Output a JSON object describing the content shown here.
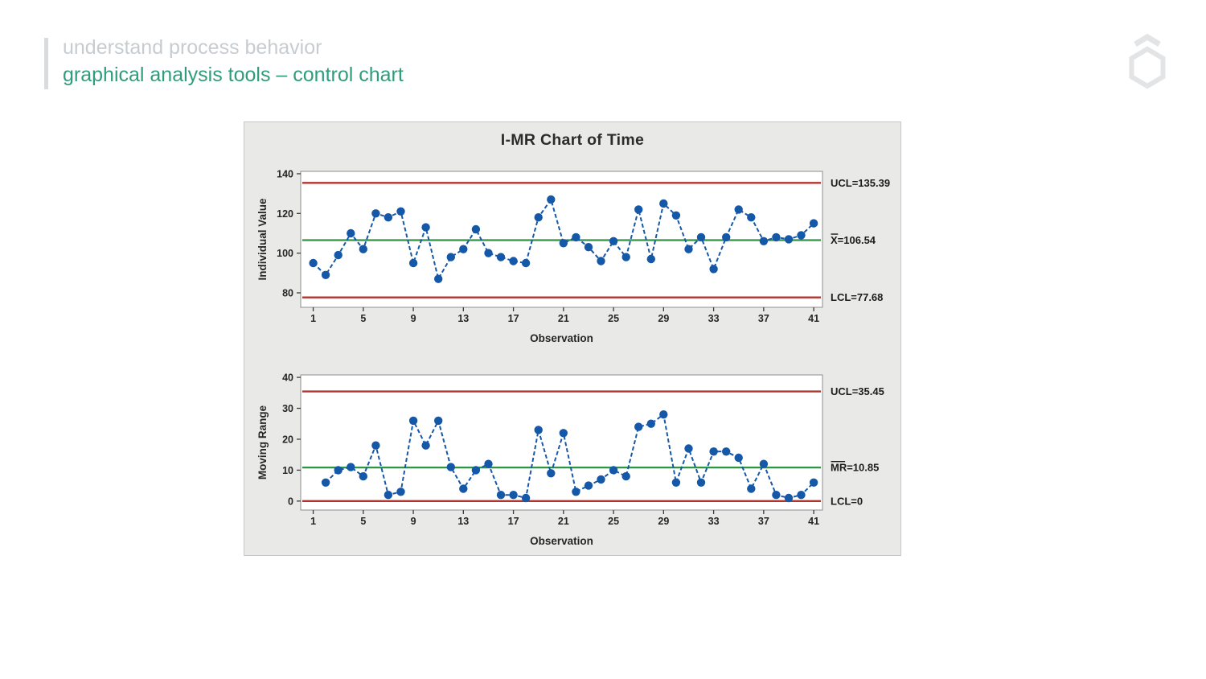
{
  "header": {
    "kicker": "understand process behavior",
    "title": "graphical analysis tools – control chart",
    "kicker_color": "#c7ccd1",
    "title_color": "#2f9d7c"
  },
  "logo": {
    "icon": "hexagon-with-chevron",
    "color": "#e3e4e6"
  },
  "panel": {
    "title": "I-MR Chart of Time",
    "background": "#e9e9e8"
  },
  "colors": {
    "series": "#1558a8",
    "limit": "#b5332d",
    "center": "#2f9444",
    "label": "#262626"
  },
  "chart_data": [
    {
      "type": "line",
      "name": "individuals",
      "title": "I-MR Chart of Time",
      "ylabel": "Individual Value",
      "xlabel": "Observation",
      "x": [
        1,
        2,
        3,
        4,
        5,
        6,
        7,
        8,
        9,
        10,
        11,
        12,
        13,
        14,
        15,
        16,
        17,
        18,
        19,
        20,
        21,
        22,
        23,
        24,
        25,
        26,
        27,
        28,
        29,
        30,
        31,
        32,
        33,
        34,
        35,
        36,
        37,
        38,
        39,
        40,
        41
      ],
      "values": [
        95,
        89,
        99,
        110,
        102,
        120,
        118,
        121,
        95,
        113,
        87,
        98,
        102,
        112,
        100,
        98,
        96,
        95,
        118,
        127,
        105,
        108,
        103,
        96,
        106,
        98,
        122,
        97,
        125,
        119,
        102,
        108,
        92,
        108,
        122,
        118,
        106,
        108,
        107,
        109,
        115
      ],
      "ucl": 135.39,
      "center": 106.54,
      "lcl": 77.68,
      "labels": {
        "ucl": "UCL=135.39",
        "center_prefix": "X",
        "center_rest": "=106.54",
        "lcl": "LCL=77.68"
      },
      "yticks": [
        80,
        100,
        120,
        140
      ],
      "xticks": [
        1,
        5,
        9,
        13,
        17,
        21,
        25,
        29,
        33,
        37,
        41
      ],
      "ylim": [
        72.7,
        141.2
      ],
      "xlim": [
        0,
        41.7
      ],
      "grid": false
    },
    {
      "type": "line",
      "name": "moving-range",
      "ylabel": "Moving Range",
      "xlabel": "Observation",
      "x": [
        2,
        3,
        4,
        5,
        6,
        7,
        8,
        9,
        10,
        11,
        12,
        13,
        14,
        15,
        16,
        17,
        18,
        19,
        20,
        21,
        22,
        23,
        24,
        25,
        26,
        27,
        28,
        29,
        30,
        31,
        32,
        33,
        34,
        35,
        36,
        37,
        38,
        39,
        40,
        41
      ],
      "values": [
        6,
        10,
        11,
        8,
        18,
        2,
        3,
        26,
        18,
        26,
        11,
        4,
        10,
        12,
        2,
        2,
        1,
        23,
        9,
        22,
        3,
        5,
        7,
        10,
        8,
        24,
        25,
        28,
        6,
        17,
        6,
        16,
        16,
        14,
        4,
        12,
        2,
        1,
        2,
        6
      ],
      "ucl": 35.45,
      "center": 10.85,
      "lcl": 0,
      "labels": {
        "ucl": "UCL=35.45",
        "center_prefix": "MR",
        "center_rest": "=10.85",
        "lcl": "LCL=0"
      },
      "yticks": [
        0,
        10,
        20,
        30,
        40
      ],
      "xticks": [
        1,
        5,
        9,
        13,
        17,
        21,
        25,
        29,
        33,
        37,
        41
      ],
      "ylim": [
        -2.9,
        40.8
      ],
      "xlim": [
        0,
        41.7
      ],
      "grid": false
    }
  ]
}
